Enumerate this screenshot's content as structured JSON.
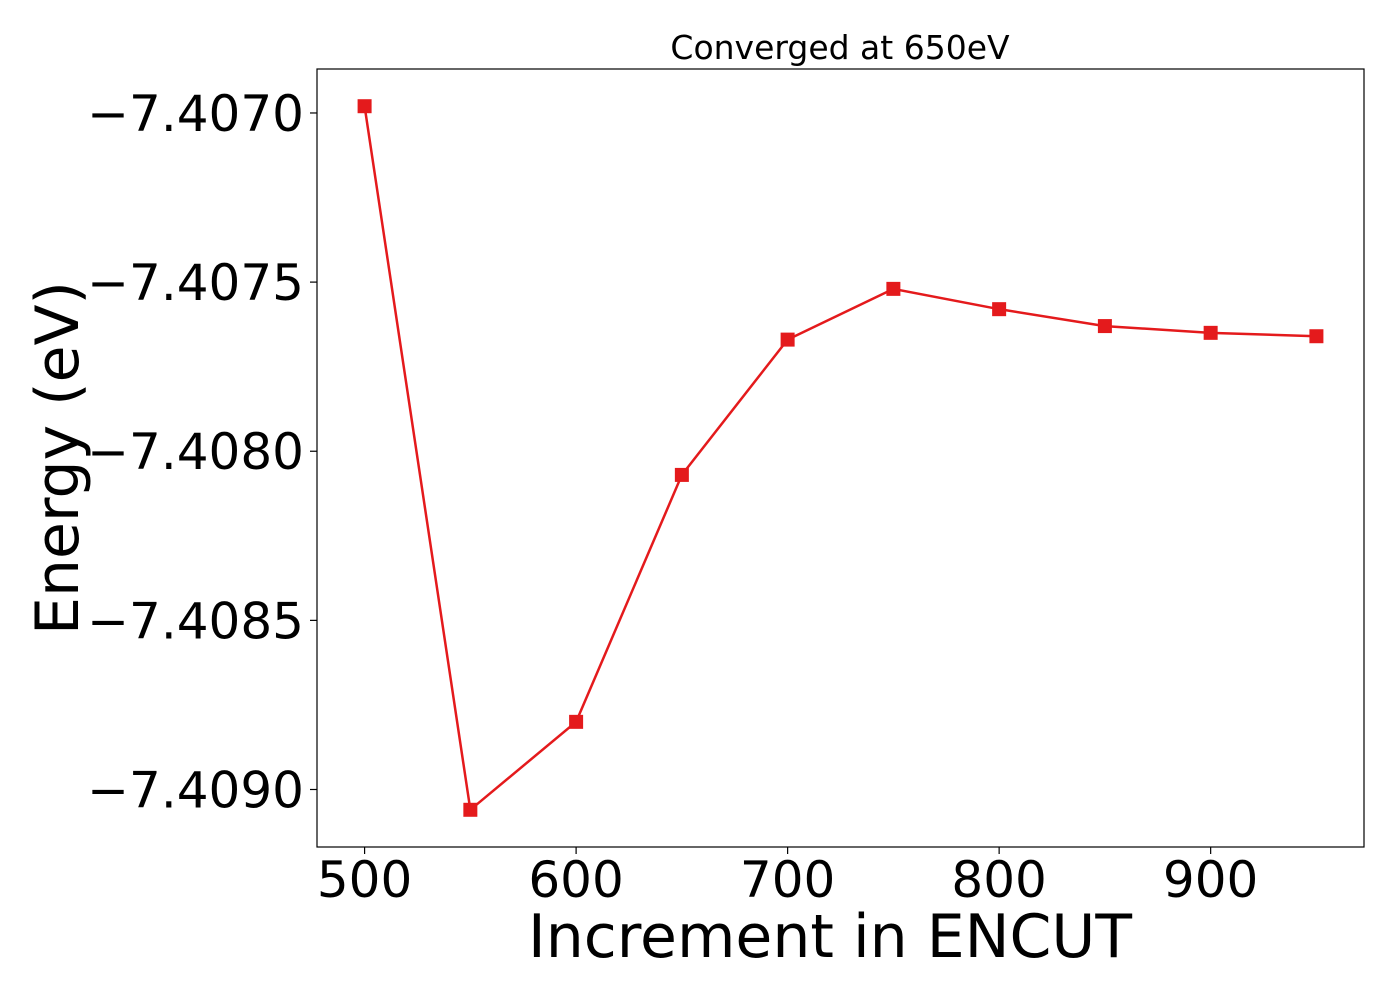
{
  "chart_data": {
    "type": "line",
    "title": "Converged at 650eV",
    "xlabel": "Increment in ENCUT",
    "ylabel": "Energy (eV)",
    "x": [
      500,
      550,
      600,
      650,
      700,
      750,
      800,
      850,
      900,
      950
    ],
    "series": [
      {
        "values": [
          -7.40698,
          -7.40906,
          -7.4088,
          -7.40807,
          -7.40767,
          -7.40752,
          -7.40758,
          -7.40763,
          -7.40765,
          -7.40766
        ],
        "color": "#e41a1c",
        "marker": "square"
      }
    ],
    "xlim": [
      477.5,
      972.5
    ],
    "ylim": [
      -7.40917,
      -7.40687
    ],
    "xticks": [
      500,
      600,
      700,
      800,
      900
    ],
    "xtick_labels": [
      "500",
      "600",
      "700",
      "800",
      "900"
    ],
    "yticks": [
      -7.407,
      -7.4075,
      -7.408,
      -7.4085,
      -7.409
    ],
    "ytick_labels": [
      "−7.4070",
      "−7.4075",
      "−7.4080",
      "−7.4085",
      "−7.4090"
    ],
    "grid": false,
    "legend": "none"
  }
}
